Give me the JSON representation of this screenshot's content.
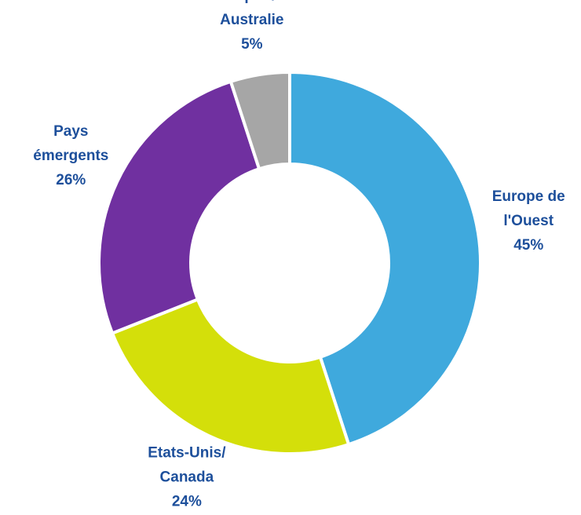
{
  "chart_data": {
    "type": "donut",
    "categories": [
      "Europe de\nl'Ouest",
      "Etats-Unis/\nCanada",
      "Pays\némergents",
      "Japon/\nAustralie"
    ],
    "values": [
      45,
      24,
      26,
      5
    ],
    "value_labels": [
      "45%",
      "24%",
      "26%",
      "5%"
    ],
    "colors": [
      "#3fa9dd",
      "#d4df0a",
      "#7030a0",
      "#a6a6a6"
    ],
    "label_color": "#1d4f9b"
  }
}
